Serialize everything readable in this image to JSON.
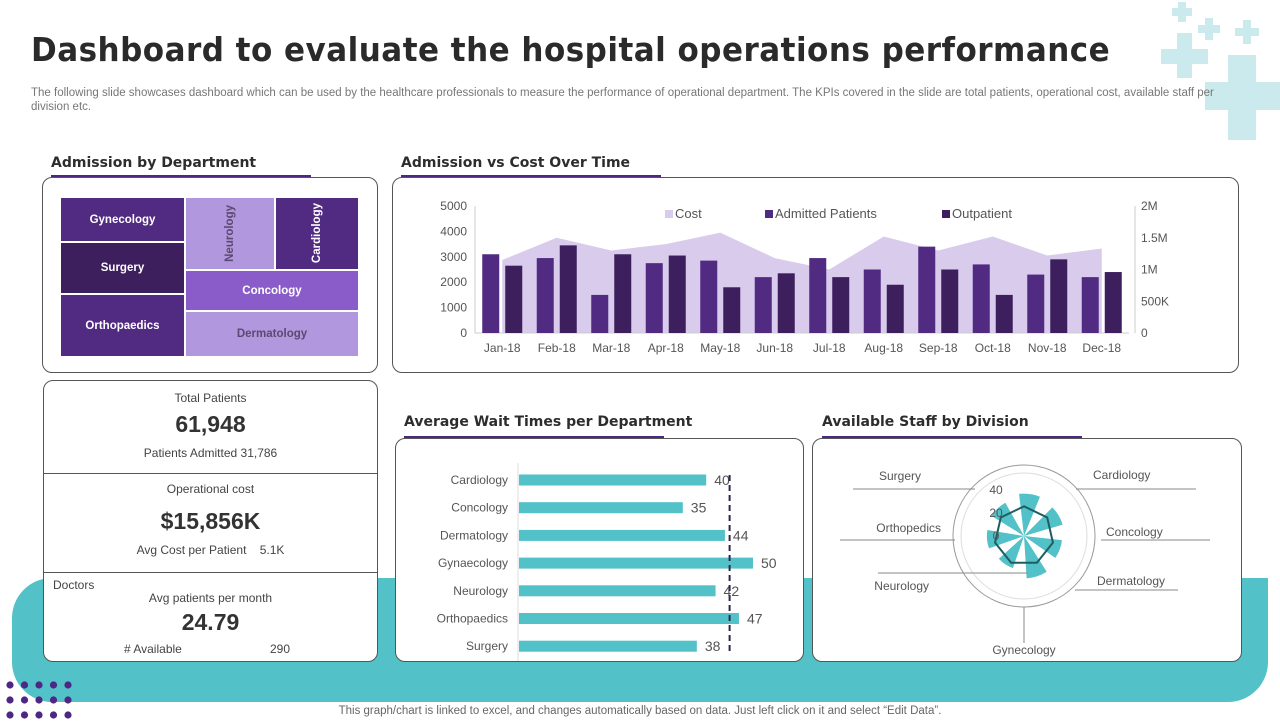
{
  "header": {
    "title": "Dashboard to evaluate the hospital operations performance",
    "subtitle": "The following slide showcases dashboard which can be used by the healthcare professionals to measure the performance of operational department. The KPIs covered in the slide are total patients, operational cost, available staff per division etc."
  },
  "colors": {
    "purple_dark": "#3d1f5e",
    "purple": "#512a82",
    "purple_mid": "#8a5cc9",
    "purple_light": "#b197dd",
    "cost_area": "#d9cbec",
    "teal": "#52c1c8",
    "polar_line": "#1e5e61"
  },
  "admission_by_department": {
    "title": "Admission by Department",
    "cells": [
      {
        "label": "Gynecology",
        "color": "#512a82"
      },
      {
        "label": "Surgery",
        "color": "#3d1f5e"
      },
      {
        "label": "Orthopaedics",
        "color": "#512a82"
      },
      {
        "label": "Neurology",
        "color": "#b197dd"
      },
      {
        "label": "Cardiology",
        "color": "#512a82"
      },
      {
        "label": "Concology",
        "color": "#8a5cc9"
      },
      {
        "label": "Dermatology",
        "color": "#b197dd"
      }
    ]
  },
  "kpis": {
    "total_patients_label": "Total Patients",
    "total_patients_value": "61,948",
    "patients_admitted_label": "Patients Admitted",
    "patients_admitted_value": "31,786",
    "operational_cost_label": "Operational cost",
    "operational_cost_value": "$15,856K",
    "avg_cost_label": "Avg  Cost per Patient",
    "avg_cost_value": "5.1K",
    "doctors_label": "Doctors",
    "avg_patients_label": "Avg  patients per month",
    "avg_patients_value": "24.79",
    "available_label": "# Available",
    "available_value": "290"
  },
  "admission_vs_cost": {
    "title": "Admission vs Cost Over Time"
  },
  "wait_times": {
    "title": "Average Wait Times per Department"
  },
  "staff_by_division": {
    "title": "Available Staff by Division"
  },
  "footer": "This graph/chart is linked to excel, and changes automatically based on data. Just left click on it and select “Edit Data”.",
  "chart_data": [
    {
      "type": "bar",
      "title": "Admission vs Cost Over Time",
      "categories": [
        "Jan-18",
        "Feb-18",
        "Mar-18",
        "Apr-18",
        "May-18",
        "Jun-18",
        "Jul-18",
        "Aug-18",
        "Sep-18",
        "Oct-18",
        "Nov-18",
        "Dec-18"
      ],
      "series": [
        {
          "name": "Cost",
          "type": "area",
          "axis": "right",
          "values": [
            1150000,
            1500000,
            1300000,
            1400000,
            1580000,
            1180000,
            1000000,
            1520000,
            1300000,
            1520000,
            1220000,
            1330000
          ]
        },
        {
          "name": "Admitted Patients",
          "type": "bar",
          "axis": "left",
          "values": [
            3100,
            2950,
            1500,
            2750,
            2850,
            2200,
            2950,
            2500,
            3400,
            2700,
            2300,
            2200
          ]
        },
        {
          "name": "Outpatient",
          "type": "bar",
          "axis": "left",
          "values": [
            2650,
            3450,
            3100,
            3050,
            1800,
            2350,
            2200,
            1900,
            2500,
            1500,
            2900,
            2400
          ]
        }
      ],
      "y_left": {
        "min": 0,
        "max": 5000,
        "ticks": [
          "0",
          "1000",
          "2000",
          "3000",
          "4000",
          "5000"
        ]
      },
      "y_right": {
        "min": 0,
        "max": 2000000,
        "ticks": [
          "0",
          "500K",
          "1M",
          "1.5M",
          "2M"
        ]
      },
      "legend": "top"
    },
    {
      "type": "bar",
      "orientation": "horizontal",
      "title": "Average Wait Times per Department",
      "categories": [
        "Cardiology",
        "Concology",
        "Dermatology",
        "Gynaecology",
        "Neurology",
        "Orthopaedics",
        "Surgery"
      ],
      "values": [
        40,
        35,
        44,
        50,
        42,
        47,
        38
      ],
      "target_line": 45,
      "xlim": [
        0,
        52
      ]
    },
    {
      "type": "polar",
      "title": "Available Staff by Division",
      "categories": [
        "Cardiology",
        "Concology",
        "Dermatology",
        "Gynecology",
        "Neurology",
        "Orthopedics",
        "Surgery"
      ],
      "bar_values": [
        40,
        38,
        36,
        40,
        32,
        35,
        36
      ],
      "line_values": [
        28,
        28,
        28,
        28,
        28,
        28,
        28
      ],
      "r_ticks": [
        "0",
        "20",
        "40"
      ],
      "rlim": [
        0,
        50
      ]
    }
  ]
}
